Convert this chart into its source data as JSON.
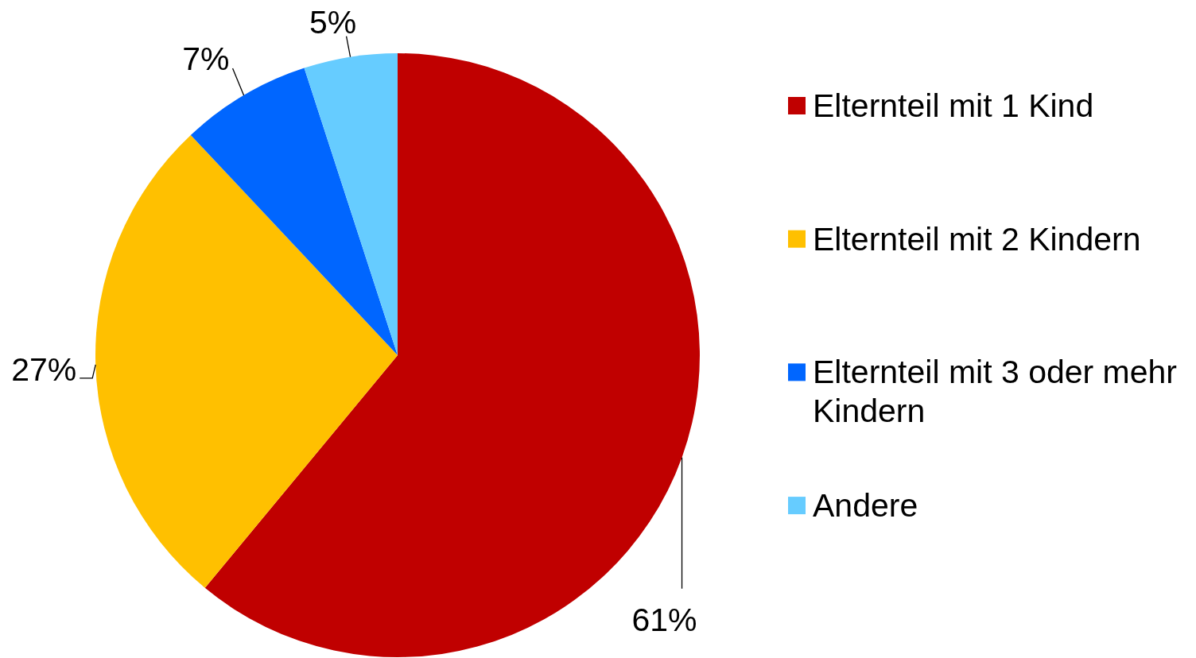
{
  "chart_data": {
    "type": "pie",
    "categories": [
      "Elternteil mit 1 Kind",
      "Elternteil mit 2 Kindern",
      "Elternteil mit 3 oder mehr Kindern",
      "Andere"
    ],
    "values": [
      61,
      27,
      7,
      5
    ],
    "colors": [
      "#c00000",
      "#ffc000",
      "#0066ff",
      "#66ccff"
    ],
    "value_labels": [
      "61%",
      "27%",
      "7%",
      "5%"
    ],
    "legend": "right"
  }
}
